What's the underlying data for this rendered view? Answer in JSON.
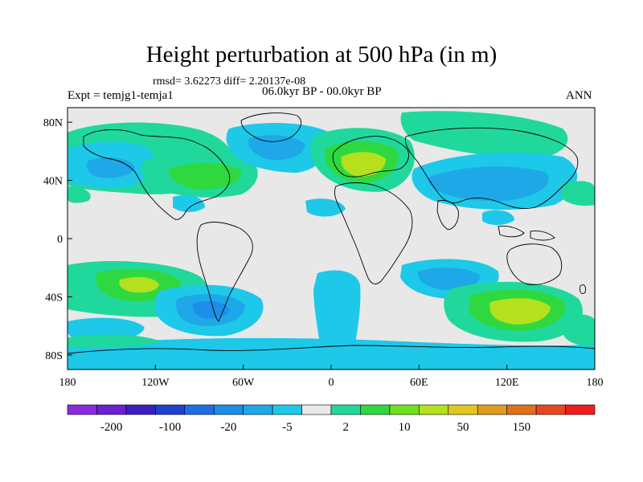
{
  "title": "Height perturbation at 500 hPa (in m)",
  "stats": "rmsd= 3.62273 diff= 2.20137e-08",
  "period": "06.0kyr BP - 00.0kyr BP",
  "experiment": "Expt = temjg1-temja1",
  "season": "ANN",
  "map": {
    "lon_range": [
      -180,
      180
    ],
    "lat_range": [
      -90,
      90
    ],
    "x_ticks": [
      {
        "lon": -180,
        "label": "180"
      },
      {
        "lon": -120,
        "label": "120W"
      },
      {
        "lon": -60,
        "label": "60W"
      },
      {
        "lon": 0,
        "label": "0"
      },
      {
        "lon": 60,
        "label": "60E"
      },
      {
        "lon": 120,
        "label": "120E"
      },
      {
        "lon": 180,
        "label": "180"
      }
    ],
    "y_ticks": [
      {
        "lat": 80,
        "label": "80N"
      },
      {
        "lat": 40,
        "label": "40N"
      },
      {
        "lat": 0,
        "label": "0"
      },
      {
        "lat": -40,
        "label": "40S"
      },
      {
        "lat": -80,
        "label": "80S"
      }
    ],
    "background_color": "#e8e8e8"
  },
  "colorbar": {
    "colors": [
      "#8a2be2",
      "#6a1fd0",
      "#3c1ebf",
      "#2040d0",
      "#1e6ee6",
      "#1e8ee8",
      "#1ea8e8",
      "#1ec8e8",
      "#e8e8e8",
      "#20d89c",
      "#30d840",
      "#6ee01e",
      "#b4e01e",
      "#e0c81e",
      "#e09c1e",
      "#e0701e",
      "#e8481e",
      "#ee1e1e"
    ],
    "labels": [
      "-200",
      "-100",
      "-20",
      "-5",
      "2",
      "10",
      "50",
      "150"
    ]
  }
}
